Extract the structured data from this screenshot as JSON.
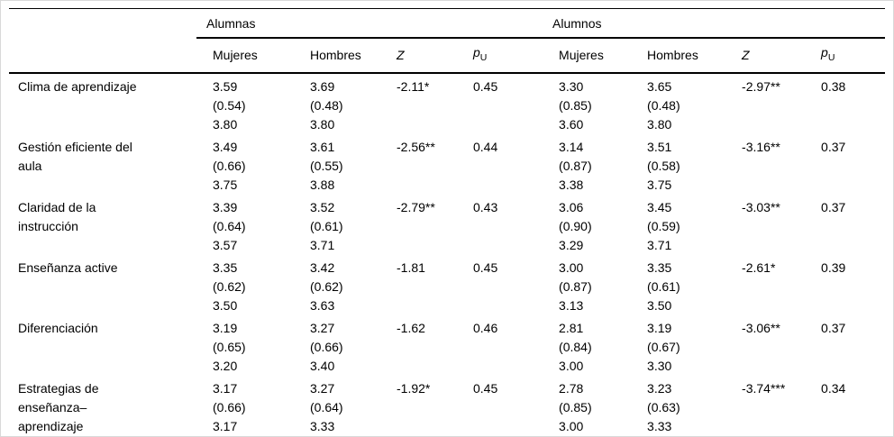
{
  "page": {
    "background_color": "#ffffff",
    "frame_color": "#d9d9d9",
    "rule_color": "#000000",
    "text_color": "#000000"
  },
  "table": {
    "group_headers": [
      {
        "label": "Alumnas"
      },
      {
        "label": "Alumnos"
      }
    ],
    "column_headers": [
      {
        "label": "Mujeres",
        "sub": ""
      },
      {
        "label": "Hombres",
        "sub": ""
      },
      {
        "label": "Z",
        "sub": ""
      },
      {
        "label": "p",
        "sub": "U"
      },
      {
        "label": "Mujeres",
        "sub": ""
      },
      {
        "label": "Hombres",
        "sub": ""
      },
      {
        "label": "Z",
        "sub": ""
      },
      {
        "label": "p",
        "sub": "U"
      }
    ],
    "rows": [
      {
        "label": "Clima de aprendizaje",
        "cells": [
          "3.59\n(0.54)\n3.80",
          "3.69\n(0.48)\n3.80",
          "-2.11*",
          "0.45",
          "3.30\n(0.85)\n3.60",
          "3.65\n(0.48)\n3.80",
          "-2.97**",
          "0.38"
        ]
      },
      {
        "label": "Gestión eficiente del\naula",
        "cells": [
          "3.49\n(0.66)\n3.75",
          "3.61\n(0.55)\n3.88",
          "-2.56**",
          "0.44",
          "3.14\n(0.87)\n3.38",
          "3.51\n(0.58)\n3.75",
          "-3.16**",
          "0.37"
        ]
      },
      {
        "label": "Claridad de la\ninstrucción",
        "cells": [
          "3.39\n(0.64)\n3.57",
          "3.52\n(0.61)\n3.71",
          "-2.79**",
          "0.43",
          "3.06\n(0.90)\n3.29",
          "3.45\n(0.59)\n3.71",
          "-3.03**",
          "0.37"
        ]
      },
      {
        "label": "Enseñanza active",
        "cells": [
          "3.35\n(0.62)\n3.50",
          "3.42\n(0.62)\n3.63",
          "-1.81",
          "0.45",
          "3.00\n(0.87)\n3.13",
          "3.35\n(0.61)\n3.50",
          "-2.61*",
          "0.39"
        ]
      },
      {
        "label": "Diferenciación",
        "cells": [
          "3.19\n(0.65)\n3.20",
          "3.27\n(0.66)\n3.40",
          "-1.62",
          "0.46",
          "2.81\n(0.84)\n3.00",
          "3.19\n(0.67)\n3.30",
          "-3.06**",
          "0.37"
        ]
      },
      {
        "label": "Estrategias de\nenseñanza–\naprendizaje",
        "cells": [
          "3.17\n(0.66)\n3.17",
          "3.27\n(0.64)\n3.33",
          "-1.92*",
          "0.45",
          "2.78\n(0.85)\n3.00",
          "3.23\n(0.63)\n3.33",
          "-3.74***",
          "0.34"
        ]
      }
    ]
  }
}
